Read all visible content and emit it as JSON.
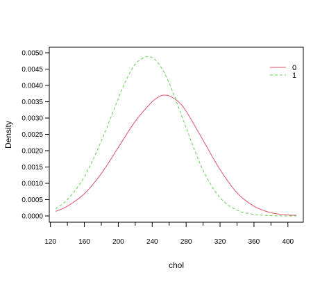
{
  "chart_data": {
    "type": "line",
    "title": "",
    "xlabel": "chol",
    "ylabel": "Density",
    "xlim": [
      126,
      410
    ],
    "ylim": [
      0,
      0.005
    ],
    "xticks": [
      120,
      160,
      200,
      240,
      280,
      320,
      360,
      400
    ],
    "yticks": [
      0.0,
      0.0005,
      0.001,
      0.0015,
      0.002,
      0.0025,
      0.003,
      0.0035,
      0.004,
      0.0045,
      0.005
    ],
    "ytick_labels": [
      "0.0000",
      "0.0005",
      "0.0010",
      "0.0015",
      "0.0020",
      "0.0025",
      "0.0030",
      "0.0035",
      "0.0040",
      "0.0045",
      "0.0050"
    ],
    "grid": false,
    "legend_position": "top-right",
    "series": [
      {
        "name": "0",
        "color": "#DF536B",
        "line_style": "solid",
        "x": [
          126,
          140,
          160,
          180,
          200,
          220,
          240,
          250,
          255,
          260,
          270,
          280,
          300,
          320,
          340,
          360,
          380,
          400,
          410
        ],
        "y": [
          0.00014,
          0.0003,
          0.00068,
          0.0013,
          0.0021,
          0.0029,
          0.0035,
          0.00368,
          0.0037,
          0.00368,
          0.00352,
          0.00321,
          0.00232,
          0.00142,
          0.00071,
          0.0003,
          0.0001,
          3e-05,
          2e-05
        ]
      },
      {
        "name": "1",
        "color": "#61D04F",
        "line_style": "dashed",
        "x": [
          126,
          140,
          160,
          180,
          200,
          210,
          220,
          230,
          237,
          245,
          255,
          265,
          280,
          300,
          320,
          340,
          360,
          380,
          400,
          410
        ],
        "y": [
          0.00022,
          0.0005,
          0.0012,
          0.0023,
          0.0036,
          0.0042,
          0.00465,
          0.00485,
          0.00488,
          0.00475,
          0.00435,
          0.00375,
          0.0027,
          0.0014,
          0.00056,
          0.00018,
          5e-05,
          1e-05,
          0.0,
          0.0
        ]
      }
    ]
  }
}
